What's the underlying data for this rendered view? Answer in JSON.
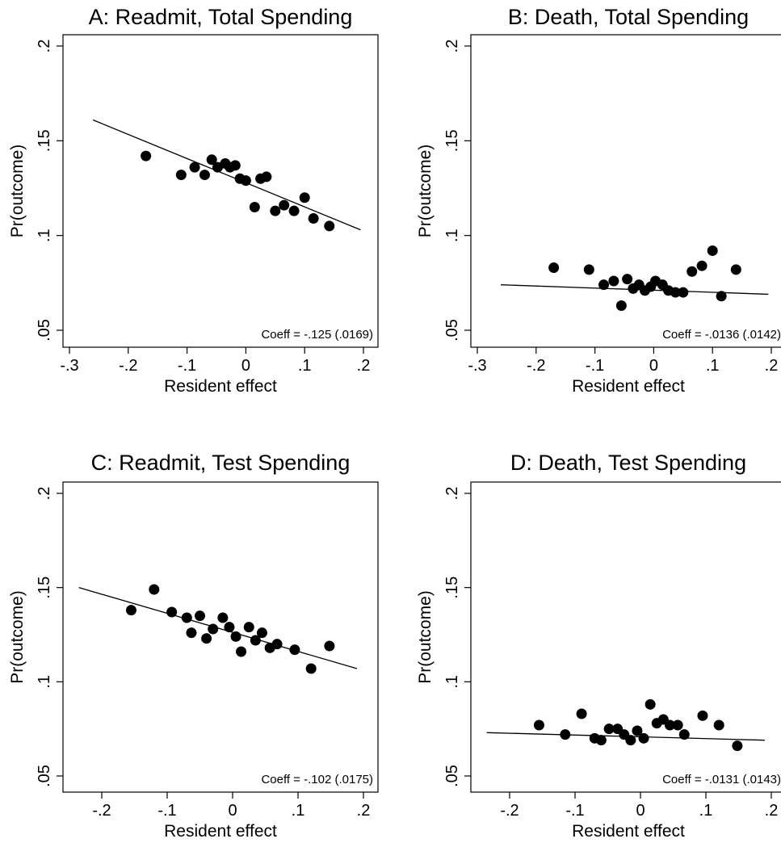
{
  "chart_data": [
    {
      "type": "scatter",
      "title": "A: Readmit, Total Spending",
      "xlabel": "Resident effect",
      "ylabel": "Pr(outcome)",
      "xlim": [
        -0.3,
        0.2
      ],
      "ylim": [
        0.05,
        0.2
      ],
      "xticks": [
        -0.3,
        -0.2,
        -0.1,
        0,
        0.1,
        0.2
      ],
      "xtick_labels": [
        "-.3",
        "-.2",
        "-.1",
        "0",
        ".1",
        ".2"
      ],
      "yticks": [
        0.05,
        0.1,
        0.15,
        0.2
      ],
      "ytick_labels": [
        ".05",
        ".1",
        ".15",
        ".2"
      ],
      "grid": false,
      "annotation": "Coeff = -.125 (.0169)",
      "points": [
        [
          -0.17,
          0.142
        ],
        [
          -0.11,
          0.132
        ],
        [
          -0.087,
          0.136
        ],
        [
          -0.07,
          0.132
        ],
        [
          -0.058,
          0.14
        ],
        [
          -0.048,
          0.136
        ],
        [
          -0.035,
          0.138
        ],
        [
          -0.027,
          0.136
        ],
        [
          -0.018,
          0.137
        ],
        [
          -0.01,
          0.13
        ],
        [
          0,
          0.129
        ],
        [
          0.015,
          0.115
        ],
        [
          0.025,
          0.13
        ],
        [
          0.035,
          0.131
        ],
        [
          0.05,
          0.113
        ],
        [
          0.065,
          0.116
        ],
        [
          0.082,
          0.113
        ],
        [
          0.1,
          0.12
        ],
        [
          0.115,
          0.109
        ],
        [
          0.142,
          0.105
        ]
      ],
      "fit_line": [
        [
          -0.26,
          0.161
        ],
        [
          0.195,
          0.103
        ]
      ]
    },
    {
      "type": "scatter",
      "title": "B: Death, Total Spending",
      "xlabel": "Resident effect",
      "ylabel": "Pr(outcome)",
      "xlim": [
        -0.3,
        0.2
      ],
      "ylim": [
        0.05,
        0.2
      ],
      "xticks": [
        -0.3,
        -0.2,
        -0.1,
        0,
        0.1,
        0.2
      ],
      "xtick_labels": [
        "-.3",
        "-.2",
        "-.1",
        "0",
        ".1",
        ".2"
      ],
      "yticks": [
        0.05,
        0.1,
        0.15,
        0.2
      ],
      "ytick_labels": [
        ".05",
        ".1",
        ".15",
        ".2"
      ],
      "grid": false,
      "annotation": "Coeff = -.0136 (.0142)",
      "points": [
        [
          -0.17,
          0.083
        ],
        [
          -0.11,
          0.082
        ],
        [
          -0.085,
          0.074
        ],
        [
          -0.068,
          0.076
        ],
        [
          -0.055,
          0.063
        ],
        [
          -0.045,
          0.077
        ],
        [
          -0.035,
          0.072
        ],
        [
          -0.025,
          0.074
        ],
        [
          -0.015,
          0.071
        ],
        [
          -0.005,
          0.073
        ],
        [
          0.003,
          0.076
        ],
        [
          0.015,
          0.074
        ],
        [
          0.025,
          0.071
        ],
        [
          0.037,
          0.07
        ],
        [
          0.05,
          0.07
        ],
        [
          0.065,
          0.081
        ],
        [
          0.082,
          0.084
        ],
        [
          0.1,
          0.092
        ],
        [
          0.115,
          0.068
        ],
        [
          0.14,
          0.082
        ]
      ],
      "fit_line": [
        [
          -0.26,
          0.074
        ],
        [
          0.195,
          0.069
        ]
      ]
    },
    {
      "type": "scatter",
      "title": "C: Readmit, Test Spending",
      "xlabel": "Resident effect",
      "ylabel": "Pr(outcome)",
      "xlim": [
        -0.25,
        0.2
      ],
      "ylim": [
        0.05,
        0.2
      ],
      "xticks": [
        -0.2,
        -0.1,
        0,
        0.1,
        0.2
      ],
      "xtick_labels": [
        "-.2",
        "-.1",
        "0",
        ".1",
        ".2"
      ],
      "yticks": [
        0.05,
        0.1,
        0.15,
        0.2
      ],
      "ytick_labels": [
        ".05",
        ".1",
        ".15",
        ".2"
      ],
      "grid": false,
      "annotation": "Coeff = -.102 (.0175)",
      "points": [
        [
          -0.155,
          0.138
        ],
        [
          -0.12,
          0.149
        ],
        [
          -0.093,
          0.137
        ],
        [
          -0.07,
          0.134
        ],
        [
          -0.063,
          0.126
        ],
        [
          -0.05,
          0.135
        ],
        [
          -0.04,
          0.123
        ],
        [
          -0.03,
          0.128
        ],
        [
          -0.015,
          0.134
        ],
        [
          -0.005,
          0.129
        ],
        [
          0.005,
          0.124
        ],
        [
          0.013,
          0.116
        ],
        [
          0.025,
          0.129
        ],
        [
          0.035,
          0.122
        ],
        [
          0.045,
          0.126
        ],
        [
          0.057,
          0.118
        ],
        [
          0.068,
          0.12
        ],
        [
          0.095,
          0.117
        ],
        [
          0.12,
          0.107
        ],
        [
          0.148,
          0.119
        ]
      ],
      "fit_line": [
        [
          -0.235,
          0.15
        ],
        [
          0.19,
          0.107
        ]
      ]
    },
    {
      "type": "scatter",
      "title": "D: Death, Test Spending",
      "xlabel": "Resident effect",
      "ylabel": "Pr(outcome)",
      "xlim": [
        -0.25,
        0.2
      ],
      "ylim": [
        0.05,
        0.2
      ],
      "xticks": [
        -0.2,
        -0.1,
        0,
        0.1,
        0.2
      ],
      "xtick_labels": [
        "-.2",
        "-.1",
        "0",
        ".1",
        ".2"
      ],
      "yticks": [
        0.05,
        0.1,
        0.15,
        0.2
      ],
      "ytick_labels": [
        ".05",
        ".1",
        ".15",
        ".2"
      ],
      "grid": false,
      "annotation": "Coeff = -.0131 (.0143)",
      "points": [
        [
          -0.155,
          0.077
        ],
        [
          -0.115,
          0.072
        ],
        [
          -0.09,
          0.083
        ],
        [
          -0.07,
          0.07
        ],
        [
          -0.06,
          0.069
        ],
        [
          -0.048,
          0.075
        ],
        [
          -0.035,
          0.075
        ],
        [
          -0.025,
          0.072
        ],
        [
          -0.015,
          0.069
        ],
        [
          -0.005,
          0.074
        ],
        [
          0.005,
          0.07
        ],
        [
          0.015,
          0.088
        ],
        [
          0.025,
          0.078
        ],
        [
          0.035,
          0.08
        ],
        [
          0.045,
          0.077
        ],
        [
          0.057,
          0.077
        ],
        [
          0.067,
          0.072
        ],
        [
          0.095,
          0.082
        ],
        [
          0.12,
          0.077
        ],
        [
          0.148,
          0.066
        ]
      ],
      "fit_line": [
        [
          -0.235,
          0.073
        ],
        [
          0.19,
          0.069
        ]
      ]
    }
  ]
}
